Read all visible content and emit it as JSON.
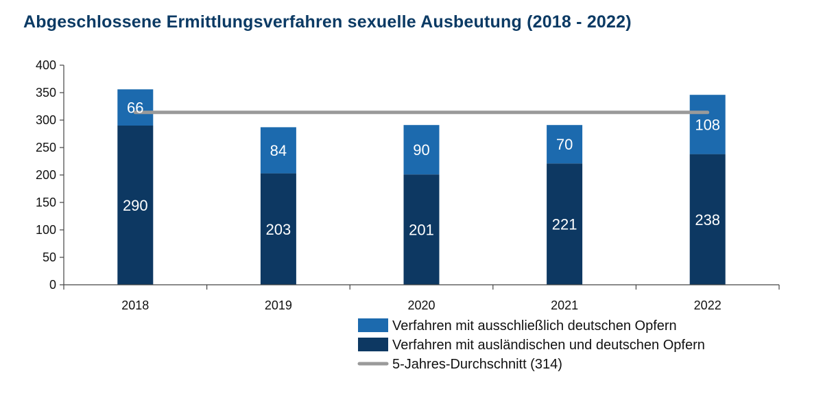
{
  "chart_data": {
    "type": "bar",
    "stacked": true,
    "title": "Abgeschlossene Ermittlungsverfahren sexuelle Ausbeutung (2018 - 2022)",
    "categories": [
      "2018",
      "2019",
      "2020",
      "2021",
      "2022"
    ],
    "series": [
      {
        "name": "Verfahren mit ausländischen und deutschen Opfern",
        "values": [
          290,
          203,
          201,
          221,
          238
        ],
        "color": "#0d3862"
      },
      {
        "name": "Verfahren mit ausschließlich deutschen Opfern",
        "values": [
          66,
          84,
          90,
          70,
          108
        ],
        "color": "#1c6aae"
      }
    ],
    "reference_line": {
      "name": "5-Jahres-Durchschnitt (314)",
      "value": 314,
      "color": "#9a9a9a"
    },
    "ylim": [
      0,
      400
    ],
    "y_ticks": [
      0,
      50,
      100,
      150,
      200,
      250,
      300,
      350,
      400
    ],
    "grid": false,
    "legend_position": "bottom-right",
    "legend_order": [
      "Verfahren mit ausschließlich deutschen Opfern",
      "Verfahren mit ausländischen und deutschen Opfern",
      "5-Jahres-Durchschnitt (314)"
    ]
  }
}
